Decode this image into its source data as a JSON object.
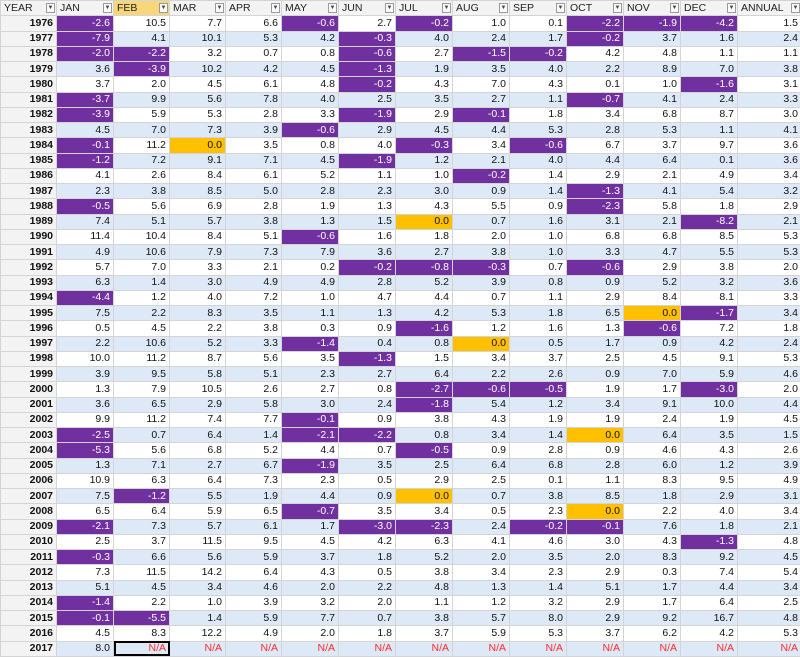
{
  "columns": [
    "YEAR",
    "JAN",
    "FEB",
    "MAR",
    "APR",
    "MAY",
    "JUN",
    "JUL",
    "AUG",
    "SEP",
    "OCT",
    "NOV",
    "DEC",
    "ANNUAL"
  ],
  "rows": [
    [
      "1976",
      "-2.6",
      "10.5",
      "7.7",
      "6.6",
      "-0.6",
      "2.7",
      "-0.2",
      "1.0",
      "0.1",
      "-2.2",
      "-1.9",
      "-4.2",
      "1.5"
    ],
    [
      "1977",
      "-7.9",
      "4.1",
      "10.1",
      "5.3",
      "4.2",
      "-0.3",
      "4.0",
      "2.4",
      "1.7",
      "-0.2",
      "3.7",
      "1.6",
      "2.4"
    ],
    [
      "1978",
      "-2.0",
      "-2.2",
      "3.2",
      "0.7",
      "0.8",
      "-0.6",
      "2.7",
      "-1.5",
      "-0.2",
      "4.2",
      "4.8",
      "1.1",
      "1.1"
    ],
    [
      "1979",
      "3.6",
      "-3.9",
      "10.2",
      "4.2",
      "4.5",
      "-1.3",
      "1.9",
      "3.5",
      "4.0",
      "2.2",
      "8.9",
      "7.0",
      "3.8"
    ],
    [
      "1980",
      "3.7",
      "2.0",
      "4.5",
      "6.1",
      "4.8",
      "-0.2",
      "4.3",
      "7.0",
      "4.3",
      "0.1",
      "1.0",
      "-1.6",
      "3.1"
    ],
    [
      "1981",
      "-3.7",
      "9.9",
      "5.6",
      "7.8",
      "4.0",
      "2.5",
      "3.5",
      "2.7",
      "1.1",
      "-0.7",
      "4.1",
      "2.4",
      "3.3"
    ],
    [
      "1982",
      "-3.9",
      "5.9",
      "5.3",
      "2.8",
      "3.3",
      "-1.9",
      "2.9",
      "-0.1",
      "1.8",
      "3.4",
      "6.8",
      "8.7",
      "3.0"
    ],
    [
      "1983",
      "4.5",
      "7.0",
      "7.3",
      "3.9",
      "-0.6",
      "2.9",
      "4.5",
      "4.4",
      "5.3",
      "2.8",
      "5.3",
      "1.1",
      "4.1"
    ],
    [
      "1984",
      "-0.1",
      "11.2",
      "0.0",
      "3.5",
      "0.8",
      "4.0",
      "-0.3",
      "3.4",
      "-0.6",
      "6.7",
      "3.7",
      "9.7",
      "3.6"
    ],
    [
      "1985",
      "-1.2",
      "7.2",
      "9.1",
      "7.1",
      "4.5",
      "-1.9",
      "1.2",
      "2.1",
      "4.0",
      "4.4",
      "6.4",
      "0.1",
      "3.6"
    ],
    [
      "1986",
      "4.1",
      "2.6",
      "8.4",
      "6.1",
      "5.2",
      "1.1",
      "1.0",
      "-0.2",
      "1.4",
      "2.9",
      "2.1",
      "4.9",
      "3.4"
    ],
    [
      "1987",
      "2.3",
      "3.8",
      "8.5",
      "5.0",
      "2.8",
      "2.3",
      "3.0",
      "0.9",
      "1.4",
      "-1.3",
      "4.1",
      "5.4",
      "3.2"
    ],
    [
      "1988",
      "-0.5",
      "5.6",
      "6.9",
      "2.8",
      "1.9",
      "1.3",
      "4.3",
      "5.5",
      "0.9",
      "-2.3",
      "5.8",
      "1.8",
      "2.9"
    ],
    [
      "1989",
      "7.4",
      "5.1",
      "5.7",
      "3.8",
      "1.3",
      "1.5",
      "0.0",
      "0.7",
      "1.6",
      "3.1",
      "2.1",
      "-8.2",
      "2.1"
    ],
    [
      "1990",
      "11.4",
      "10.4",
      "8.4",
      "5.1",
      "-0.6",
      "1.6",
      "1.8",
      "2.0",
      "1.0",
      "6.8",
      "6.8",
      "8.5",
      "5.3"
    ],
    [
      "1991",
      "4.9",
      "10.6",
      "7.9",
      "7.3",
      "7.9",
      "3.6",
      "2.7",
      "3.8",
      "1.0",
      "3.3",
      "4.7",
      "5.5",
      "5.3"
    ],
    [
      "1992",
      "5.7",
      "7.0",
      "3.3",
      "2.1",
      "0.2",
      "-0.2",
      "-0.8",
      "-0.3",
      "0.7",
      "-0.6",
      "2.9",
      "3.8",
      "2.0"
    ],
    [
      "1993",
      "6.3",
      "1.4",
      "3.0",
      "4.9",
      "4.9",
      "2.8",
      "5.2",
      "3.9",
      "0.8",
      "0.9",
      "5.2",
      "3.2",
      "3.6"
    ],
    [
      "1994",
      "-4.4",
      "1.2",
      "4.0",
      "7.2",
      "1.0",
      "4.7",
      "4.4",
      "0.7",
      "1.1",
      "2.9",
      "8.4",
      "8.1",
      "3.3"
    ],
    [
      "1995",
      "7.5",
      "2.2",
      "8.3",
      "3.5",
      "1.1",
      "1.3",
      "4.2",
      "5.3",
      "1.8",
      "6.5",
      "0.0",
      "-1.7",
      "3.4"
    ],
    [
      "1996",
      "0.5",
      "4.5",
      "2.2",
      "3.8",
      "0.3",
      "0.9",
      "-1.6",
      "1.2",
      "1.6",
      "1.3",
      "-0.6",
      "7.2",
      "1.8"
    ],
    [
      "1997",
      "2.2",
      "10.6",
      "5.2",
      "3.3",
      "-1.4",
      "0.4",
      "0.8",
      "0.0",
      "0.5",
      "1.7",
      "0.9",
      "4.2",
      "2.4"
    ],
    [
      "1998",
      "10.0",
      "11.2",
      "8.7",
      "5.6",
      "3.5",
      "-1.3",
      "1.5",
      "3.4",
      "3.7",
      "2.5",
      "4.5",
      "9.1",
      "5.3"
    ],
    [
      "1999",
      "3.9",
      "9.5",
      "5.8",
      "5.1",
      "2.3",
      "2.7",
      "6.4",
      "2.2",
      "2.6",
      "0.9",
      "7.0",
      "5.9",
      "4.6"
    ],
    [
      "2000",
      "1.3",
      "7.9",
      "10.5",
      "2.6",
      "2.7",
      "0.8",
      "-2.7",
      "-0.6",
      "-0.5",
      "1.9",
      "1.7",
      "-3.0",
      "2.0"
    ],
    [
      "2001",
      "3.6",
      "6.5",
      "2.9",
      "5.8",
      "3.0",
      "2.4",
      "-1.8",
      "5.4",
      "1.2",
      "3.4",
      "9.1",
      "10.0",
      "4.4"
    ],
    [
      "2002",
      "9.9",
      "11.2",
      "7.4",
      "7.7",
      "-0.1",
      "0.9",
      "3.8",
      "4.3",
      "1.9",
      "1.9",
      "2.4",
      "1.9",
      "4.5"
    ],
    [
      "2003",
      "-2.5",
      "0.7",
      "6.4",
      "1.4",
      "-2.1",
      "-2.2",
      "0.8",
      "3.4",
      "1.4",
      "0.0",
      "6.4",
      "3.5",
      "1.5"
    ],
    [
      "2004",
      "-5.3",
      "5.6",
      "6.8",
      "5.2",
      "4.4",
      "0.7",
      "-0.5",
      "0.9",
      "2.8",
      "0.9",
      "4.6",
      "4.3",
      "2.6"
    ],
    [
      "2005",
      "1.3",
      "7.1",
      "2.7",
      "6.7",
      "-1.9",
      "3.5",
      "2.5",
      "6.4",
      "6.8",
      "2.8",
      "6.0",
      "1.2",
      "3.9"
    ],
    [
      "2006",
      "10.9",
      "6.3",
      "6.4",
      "7.3",
      "2.3",
      "0.5",
      "2.9",
      "2.5",
      "0.1",
      "1.1",
      "8.3",
      "9.5",
      "4.9"
    ],
    [
      "2007",
      "7.5",
      "-1.2",
      "5.5",
      "1.9",
      "4.4",
      "0.9",
      "0.0",
      "0.7",
      "3.8",
      "8.5",
      "1.8",
      "2.9",
      "3.1"
    ],
    [
      "2008",
      "6.5",
      "6.4",
      "5.9",
      "6.5",
      "-0.7",
      "3.5",
      "3.4",
      "0.5",
      "2.3",
      "0.0",
      "2.2",
      "4.0",
      "3.4"
    ],
    [
      "2009",
      "-2.1",
      "7.3",
      "5.7",
      "6.1",
      "1.7",
      "-3.0",
      "-2.3",
      "2.4",
      "-0.2",
      "-0.1",
      "7.6",
      "1.8",
      "2.1"
    ],
    [
      "2010",
      "2.5",
      "3.7",
      "11.5",
      "9.5",
      "4.5",
      "4.2",
      "6.3",
      "4.1",
      "4.6",
      "3.0",
      "4.3",
      "-1.3",
      "4.8"
    ],
    [
      "2011",
      "-0.3",
      "6.6",
      "5.6",
      "5.9",
      "3.7",
      "1.8",
      "5.2",
      "2.0",
      "3.5",
      "2.0",
      "8.3",
      "9.2",
      "4.5"
    ],
    [
      "2012",
      "7.3",
      "11.5",
      "14.2",
      "6.4",
      "4.3",
      "0.5",
      "3.8",
      "3.4",
      "2.3",
      "2.9",
      "0.3",
      "7.4",
      "5.4"
    ],
    [
      "2013",
      "5.1",
      "4.5",
      "3.4",
      "4.6",
      "2.0",
      "2.2",
      "4.8",
      "1.3",
      "1.4",
      "5.1",
      "1.7",
      "4.4",
      "3.4"
    ],
    [
      "2014",
      "-1.4",
      "2.2",
      "1.0",
      "3.9",
      "3.2",
      "2.0",
      "1.1",
      "1.2",
      "3.2",
      "2.9",
      "1.7",
      "6.4",
      "2.5"
    ],
    [
      "2015",
      "-0.1",
      "-5.5",
      "1.4",
      "5.9",
      "7.7",
      "0.7",
      "3.8",
      "5.7",
      "8.0",
      "2.9",
      "9.2",
      "16.7",
      "4.8"
    ],
    [
      "2016",
      "4.5",
      "8.3",
      "12.2",
      "4.9",
      "2.0",
      "1.8",
      "3.7",
      "5.9",
      "5.3",
      "3.7",
      "6.2",
      "4.2",
      "5.3"
    ],
    [
      "2017",
      "8.0",
      "N/A",
      "N/A",
      "N/A",
      "N/A",
      "N/A",
      "N/A",
      "N/A",
      "N/A",
      "N/A",
      "N/A",
      "N/A",
      "N/A"
    ]
  ],
  "active_column": "FEB",
  "selected_cell": {
    "row": "2017",
    "column": "FEB"
  },
  "colors": {
    "negative_fill": "#7030a0",
    "zero_fill": "#ffc000",
    "na_text": "#ff2a2a",
    "band_fill": "#dde9f6",
    "header_fill": "#f3f3f3",
    "active_header_fill": "#f7d77a"
  },
  "icons": {
    "column_filter": "filter-dropdown-icon"
  }
}
